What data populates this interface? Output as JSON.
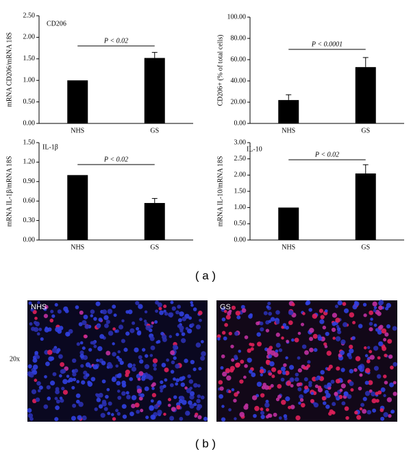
{
  "chart_data": [
    {
      "type": "bar",
      "annotation": "CD206",
      "p_label": "P < 0.02",
      "ylabel": "mRNA CD206/mRNA 18S",
      "categories": [
        "NHS",
        "GS"
      ],
      "values": [
        1.0,
        1.52
      ],
      "errors": [
        null,
        0.13
      ],
      "color": "#000000",
      "ylim": [
        0,
        2.5
      ],
      "yticks": [
        {
          "value": 0,
          "label": "0.00"
        },
        {
          "value": 0.5,
          "label": "0.50"
        },
        {
          "value": 1,
          "label": "1.00"
        },
        {
          "value": 1.5,
          "label": "1.50"
        },
        {
          "value": 2,
          "label": "2.00"
        },
        {
          "value": 2.5,
          "label": "2.50"
        }
      ]
    },
    {
      "type": "bar",
      "p_label": "P < 0.0001",
      "ylabel": "CD206+ (% of total cells)",
      "categories": [
        "NHS",
        "GS"
      ],
      "values": [
        22,
        53
      ],
      "errors": [
        5,
        9
      ],
      "color": "#000000",
      "ylim": [
        0,
        100
      ],
      "yticks": [
        {
          "value": 0,
          "label": "0.00"
        },
        {
          "value": 20,
          "label": "20.00"
        },
        {
          "value": 40,
          "label": "40.00"
        },
        {
          "value": 60,
          "label": "60.00"
        },
        {
          "value": 80,
          "label": "80.00"
        },
        {
          "value": 100,
          "label": "100.00"
        }
      ]
    },
    {
      "type": "bar",
      "annotation": "IL-1β",
      "p_label": "P < 0.02",
      "ylabel": "mRNA IL-1β/mRNA 18S",
      "categories": [
        "NHS",
        "GS"
      ],
      "values": [
        1.0,
        0.57
      ],
      "errors": [
        null,
        0.07
      ],
      "color": "#000000",
      "ylim": [
        0,
        1.5
      ],
      "yticks": [
        {
          "value": 0,
          "label": "0.00"
        },
        {
          "value": 0.3,
          "label": "0.30"
        },
        {
          "value": 0.6,
          "label": "0.60"
        },
        {
          "value": 0.9,
          "label": "0.90"
        },
        {
          "value": 1.2,
          "label": "1.20"
        },
        {
          "value": 1.5,
          "label": "1.50"
        }
      ]
    },
    {
      "type": "bar",
      "annotation": "IL-10",
      "p_label": "P < 0.02",
      "ylabel": "mRNA IL-10/mRNA 18S",
      "categories": [
        "NHS",
        "GS"
      ],
      "values": [
        1.0,
        2.05
      ],
      "errors": [
        null,
        0.27
      ],
      "color": "#000000",
      "ylim": [
        0,
        3
      ],
      "yticks": [
        {
          "value": 0,
          "label": "0.00"
        },
        {
          "value": 0.5,
          "label": "0.50"
        },
        {
          "value": 1,
          "label": "1.00"
        },
        {
          "value": 1.5,
          "label": "1.50"
        },
        {
          "value": 2,
          "label": "2.00"
        },
        {
          "value": 2.5,
          "label": "2.50"
        },
        {
          "value": 3,
          "label": "3.00"
        }
      ]
    }
  ],
  "panel_a_label": "( a )",
  "panel_b_label": "( b )",
  "magnification": "20x",
  "images": [
    "NHS",
    "GS"
  ]
}
